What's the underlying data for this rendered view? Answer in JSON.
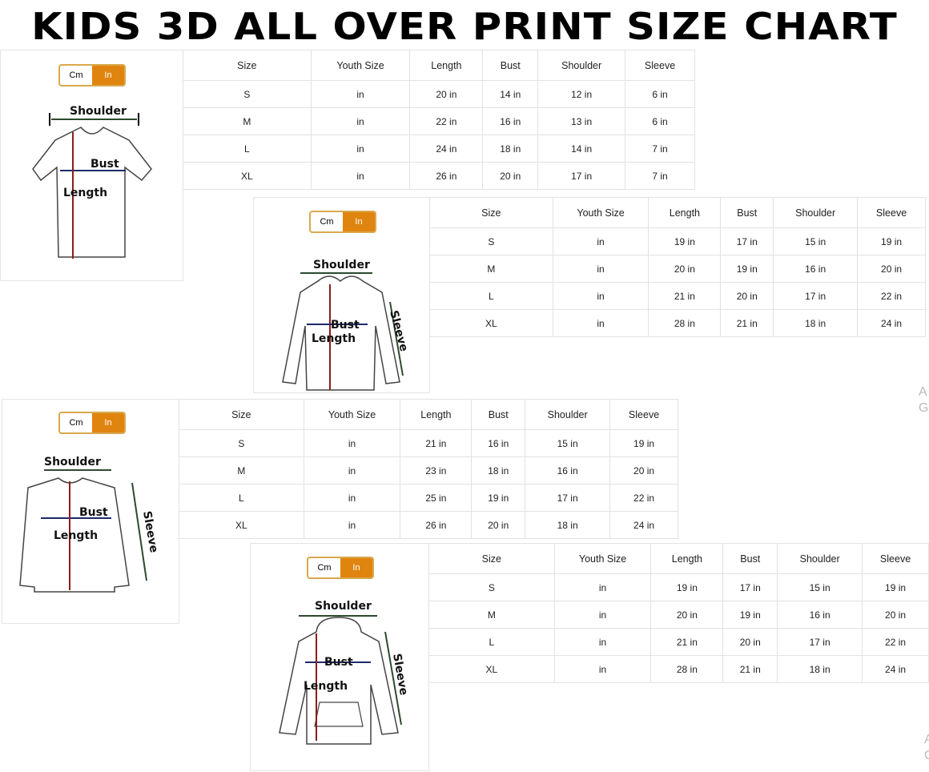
{
  "title": "KIDS 3D ALL OVER PRINT SIZE CHART",
  "unit_toggle": {
    "cm": "Cm",
    "in": "In",
    "selected": "In",
    "accent": "#e08410"
  },
  "labels": {
    "shoulder": "Shoulder",
    "bust": "Bust",
    "length": "Length",
    "sleeve": "Sleeve"
  },
  "headers": [
    "Size",
    "Youth Size",
    "Length",
    "Bust",
    "Shoulder",
    "Sleeve"
  ],
  "charts": [
    {
      "garment": "t-shirt",
      "rows": [
        [
          "S",
          "in",
          "20 in",
          "14 in",
          "12 in",
          "6 in"
        ],
        [
          "M",
          "in",
          "22 in",
          "16 in",
          "13 in",
          "6 in"
        ],
        [
          "L",
          "in",
          "24 in",
          "18 in",
          "14 in",
          "7 in"
        ],
        [
          "XL",
          "in",
          "26 in",
          "20 in",
          "17 in",
          "7 in"
        ]
      ]
    },
    {
      "garment": "zip-hoodie",
      "rows": [
        [
          "S",
          "in",
          "19 in",
          "17 in",
          "15 in",
          "19 in"
        ],
        [
          "M",
          "in",
          "20 in",
          "19 in",
          "16 in",
          "20 in"
        ],
        [
          "L",
          "in",
          "21 in",
          "20 in",
          "17 in",
          "22 in"
        ],
        [
          "XL",
          "in",
          "28 in",
          "21 in",
          "18 in",
          "24 in"
        ]
      ]
    },
    {
      "garment": "long-sleeve-shirt",
      "rows": [
        [
          "S",
          "in",
          "21 in",
          "16 in",
          "15 in",
          "19 in"
        ],
        [
          "M",
          "in",
          "23 in",
          "18 in",
          "16 in",
          "20 in"
        ],
        [
          "L",
          "in",
          "25 in",
          "19 in",
          "17 in",
          "22 in"
        ],
        [
          "XL",
          "in",
          "26 in",
          "20 in",
          "18 in",
          "24 in"
        ]
      ]
    },
    {
      "garment": "pullover-hoodie",
      "rows": [
        [
          "S",
          "in",
          "19 in",
          "17 in",
          "15 in",
          "19 in"
        ],
        [
          "M",
          "in",
          "20 in",
          "19 in",
          "16 in",
          "20 in"
        ],
        [
          "L",
          "in",
          "21 in",
          "20 in",
          "17 in",
          "22 in"
        ],
        [
          "XL",
          "in",
          "28 in",
          "21 in",
          "18 in",
          "24 in"
        ]
      ]
    }
  ],
  "watermark": {
    "line1": "A",
    "line2": "G"
  }
}
